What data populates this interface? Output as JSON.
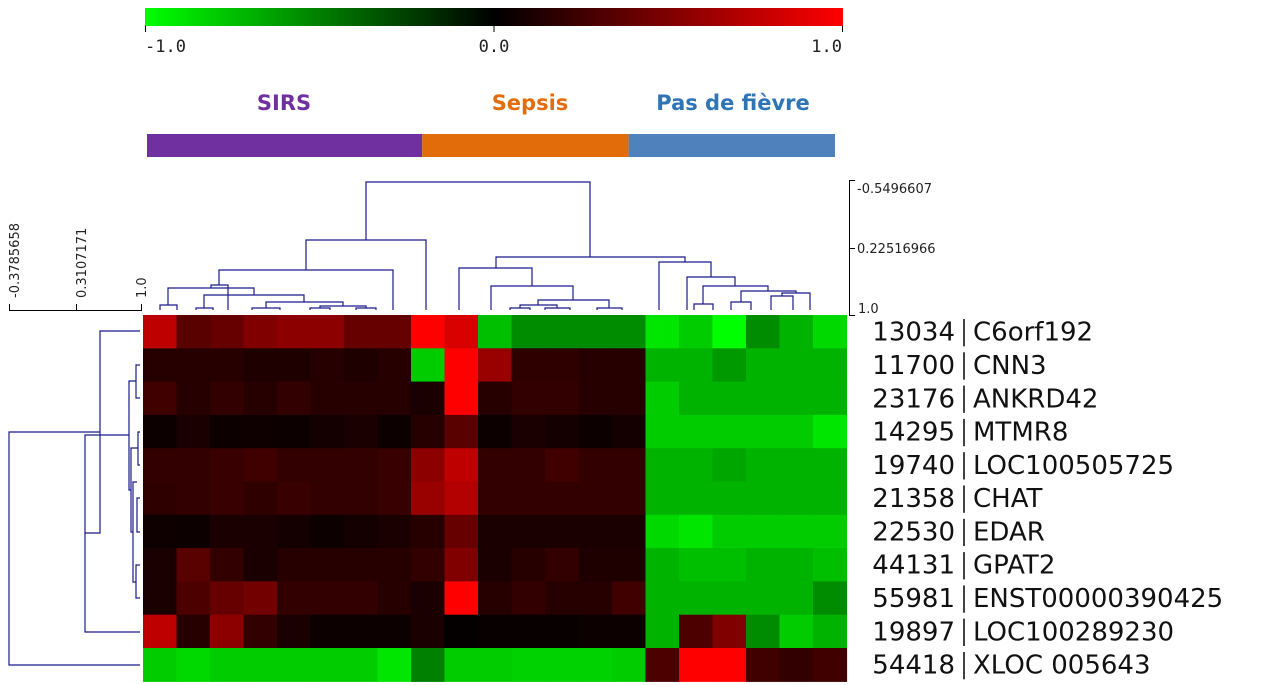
{
  "chart_data": {
    "type": "heatmap",
    "colorbar": {
      "min_label": "-1.0",
      "mid_label": "0.0",
      "max_label": "1.0",
      "colors": [
        "#00ff00",
        "#000000",
        "#ff0000"
      ]
    },
    "groups": [
      {
        "name": "SIRS",
        "color": "#7030a0",
        "columns": 8
      },
      {
        "name": "Sepsis",
        "color": "#e26b0a",
        "columns": 6
      },
      {
        "name": "Pas de fièvre",
        "color": "#4f81bd",
        "columns": 6
      }
    ],
    "group_label_colors": [
      "#7030a0",
      "#e46c0a",
      "#2e75b6"
    ],
    "column_dendrogram_scale": [
      "-0.5496607",
      "0.22516966",
      "1.0"
    ],
    "row_dendrogram_scale": [
      "-0.3785658",
      "0.3107171",
      "1.0"
    ],
    "rows": [
      {
        "id": "13034",
        "gene": "C6orf192",
        "values": [
          0.75,
          0.35,
          0.4,
          0.5,
          0.55,
          0.55,
          0.4,
          0.4,
          1.0,
          0.85,
          -0.75,
          -0.55,
          -0.55,
          -0.55,
          -0.55,
          -0.9,
          -0.8,
          -1.0,
          -0.55,
          -0.7,
          -0.85
        ]
      },
      {
        "id": "11700",
        "gene": "CNN3",
        "values": [
          0.15,
          0.15,
          0.15,
          0.12,
          0.12,
          0.15,
          0.12,
          0.15,
          -0.8,
          1.0,
          0.6,
          0.18,
          0.18,
          0.15,
          0.15,
          -0.7,
          -0.7,
          -0.6,
          -0.7,
          -0.7,
          -0.7
        ]
      },
      {
        "id": "23176",
        "gene": "ANKRD42",
        "values": [
          0.25,
          0.15,
          0.2,
          0.15,
          0.2,
          0.15,
          0.15,
          0.15,
          0.1,
          1.0,
          0.15,
          0.2,
          0.2,
          0.15,
          0.15,
          -0.8,
          -0.7,
          -0.7,
          -0.7,
          -0.7,
          -0.7
        ]
      },
      {
        "id": "14295",
        "gene": "MTMR8",
        "values": [
          0.05,
          0.1,
          0.05,
          0.06,
          0.05,
          0.08,
          0.1,
          0.05,
          0.15,
          0.35,
          0.05,
          0.1,
          0.08,
          0.05,
          0.08,
          -0.8,
          -0.8,
          -0.8,
          -0.8,
          -0.8,
          -0.9
        ]
      },
      {
        "id": "19740",
        "gene": "LOC100505725",
        "values": [
          0.2,
          0.2,
          0.22,
          0.25,
          0.2,
          0.2,
          0.2,
          0.22,
          0.55,
          0.75,
          0.2,
          0.2,
          0.25,
          0.2,
          0.2,
          -0.7,
          -0.7,
          -0.65,
          -0.7,
          -0.7,
          -0.7
        ]
      },
      {
        "id": "21358",
        "gene": "CHAT",
        "values": [
          0.18,
          0.2,
          0.22,
          0.18,
          0.22,
          0.2,
          0.2,
          0.22,
          0.6,
          0.7,
          0.2,
          0.2,
          0.2,
          0.2,
          0.2,
          -0.7,
          -0.7,
          -0.7,
          -0.7,
          -0.7,
          -0.7
        ]
      },
      {
        "id": "22530",
        "gene": "EDAR",
        "values": [
          0.06,
          0.05,
          0.1,
          0.1,
          0.08,
          0.05,
          0.08,
          0.1,
          0.15,
          0.4,
          0.1,
          0.1,
          0.1,
          0.1,
          0.1,
          -0.85,
          -0.9,
          -0.8,
          -0.8,
          -0.8,
          -0.8
        ]
      },
      {
        "id": "44131",
        "gene": "GPAT2",
        "values": [
          0.1,
          0.35,
          0.2,
          0.1,
          0.15,
          0.15,
          0.15,
          0.15,
          0.2,
          0.5,
          0.1,
          0.15,
          0.2,
          0.12,
          0.12,
          -0.7,
          -0.75,
          -0.75,
          -0.7,
          -0.7,
          -0.75
        ]
      },
      {
        "id": "55981",
        "gene": "ENST00000390425",
        "values": [
          0.1,
          0.3,
          0.4,
          0.45,
          0.2,
          0.2,
          0.2,
          0.15,
          0.1,
          1.0,
          0.15,
          0.2,
          0.15,
          0.15,
          0.25,
          -0.7,
          -0.7,
          -0.7,
          -0.7,
          -0.7,
          -0.55
        ]
      },
      {
        "id": "19897",
        "gene": "LOC100289230",
        "values": [
          0.75,
          0.15,
          0.55,
          0.2,
          0.1,
          0.05,
          0.05,
          0.05,
          0.1,
          0.02,
          0.03,
          0.03,
          0.03,
          0.05,
          0.05,
          -0.7,
          0.3,
          0.5,
          -0.55,
          -0.8,
          -0.7
        ]
      },
      {
        "id": "54418",
        "gene": "XLOC 005643",
        "values": [
          -0.8,
          -0.85,
          -0.8,
          -0.8,
          -0.8,
          -0.8,
          -0.8,
          -0.9,
          -0.5,
          -0.8,
          -0.8,
          -0.82,
          -0.82,
          -0.82,
          -0.8,
          0.3,
          1.0,
          1.0,
          0.25,
          0.2,
          0.25
        ]
      }
    ]
  }
}
